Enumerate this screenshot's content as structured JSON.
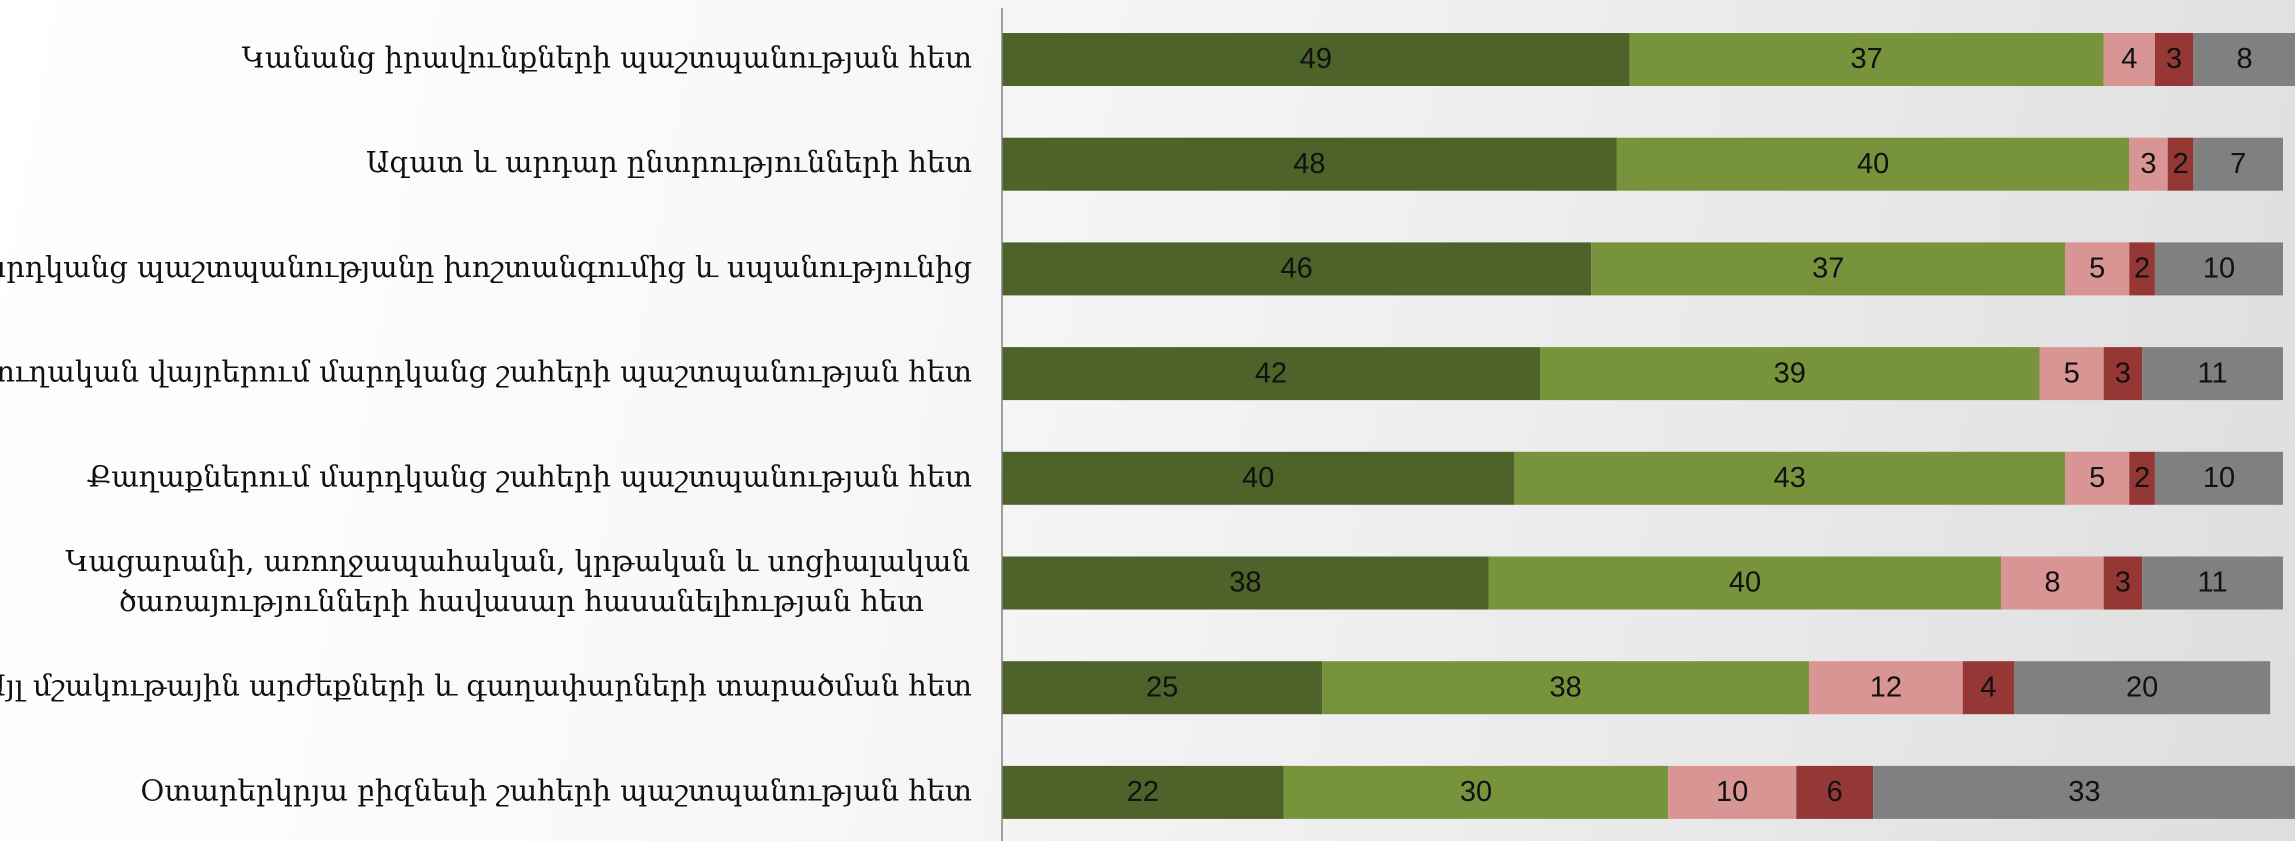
{
  "chart_data": {
    "type": "bar",
    "orientation": "horizontal",
    "stacked": true,
    "categories": [
      [
        "Կանանց իրավունքների պաշտպանության հետ"
      ],
      [
        "Ազատ և արդար ընտրությունների հետ"
      ],
      [
        "Մարդկանց պաշտպանությանը խոշտանգումից և սպանությունից"
      ],
      [
        "Գյուղական վայրերում մարդկանց շահերի պաշտպանության հետ"
      ],
      [
        "Քաղաքներում մարդկանց շահերի պաշտպանության հետ"
      ],
      [
        "Կացարանի, առողջապահական, կրթական և սոցիալական",
        "ծառայությունների հավասար հասանելիության հետ"
      ],
      [
        "Այլ մշակութային արժեքների և գաղափարների տարածման հետ"
      ],
      [
        "Օտարերկրյա բիզնեսի շահերի պաշտպանության հետ"
      ]
    ],
    "series": [
      {
        "color": "#4e6329",
        "values": [
          49,
          48,
          46,
          42,
          40,
          38,
          25,
          22
        ]
      },
      {
        "color": "#77933c",
        "values": [
          37,
          40,
          37,
          39,
          43,
          40,
          38,
          30
        ]
      },
      {
        "color": "#d99594",
        "values": [
          4,
          3,
          5,
          5,
          5,
          8,
          12,
          10
        ]
      },
      {
        "color": "#953735",
        "values": [
          3,
          2,
          2,
          3,
          2,
          3,
          4,
          6
        ]
      },
      {
        "color": "#808080",
        "values": [
          8,
          7,
          10,
          11,
          10,
          11,
          20,
          33
        ]
      }
    ],
    "xlim": [
      0,
      100
    ],
    "legend": "none",
    "grid": false,
    "axis_line_color": "#808080"
  }
}
